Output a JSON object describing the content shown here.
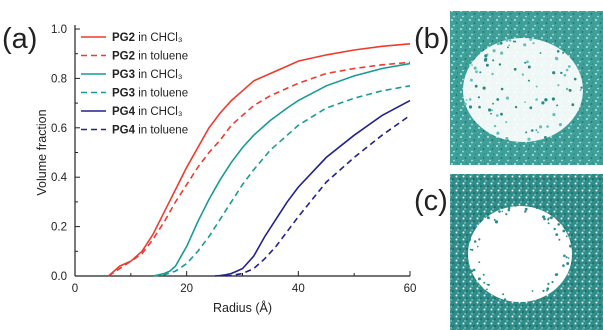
{
  "panels": {
    "a": "(a)",
    "b": "(b)",
    "c": "(c)"
  },
  "chart_data": {
    "type": "line",
    "title": "",
    "xlabel": "Radius (Å)",
    "ylabel": "Volume fraction",
    "xlim": [
      0,
      60
    ],
    "ylim": [
      0,
      1.0
    ],
    "x_ticks": [
      "0",
      "20",
      "40",
      "60"
    ],
    "y_ticks": [
      "0.0",
      "0.2",
      "0.4",
      "0.6",
      "0.8",
      "1.0"
    ],
    "grid": false,
    "legend_position": "top-left",
    "series": [
      {
        "name_bold": "PG2",
        "name_rest": " in CHCl₃",
        "color": "#ee3b2e",
        "dash": "solid",
        "x": [
          6,
          7,
          8,
          9,
          10,
          12,
          14,
          16,
          18,
          20,
          22,
          24,
          26,
          28,
          30,
          32,
          35,
          38,
          40,
          45,
          50,
          55,
          60
        ],
        "y": [
          0.0,
          0.02,
          0.04,
          0.05,
          0.06,
          0.1,
          0.17,
          0.26,
          0.35,
          0.44,
          0.52,
          0.6,
          0.66,
          0.71,
          0.75,
          0.79,
          0.82,
          0.85,
          0.87,
          0.895,
          0.915,
          0.93,
          0.94
        ]
      },
      {
        "name_bold": "PG2",
        "name_rest": " in toluene",
        "color": "#ee3b2e",
        "dash": "dashed",
        "x": [
          6,
          8,
          10,
          12,
          14,
          16,
          18,
          20,
          22,
          24,
          26,
          28,
          30,
          32,
          35,
          40,
          45,
          50,
          55,
          60
        ],
        "y": [
          0.0,
          0.03,
          0.06,
          0.09,
          0.15,
          0.22,
          0.3,
          0.37,
          0.44,
          0.5,
          0.55,
          0.61,
          0.65,
          0.69,
          0.73,
          0.78,
          0.82,
          0.84,
          0.855,
          0.865
        ]
      },
      {
        "name_bold": "PG3",
        "name_rest": " in CHCl₃",
        "color": "#1a9a96",
        "dash": "solid",
        "x": [
          14,
          15,
          16,
          17,
          18,
          19,
          20,
          22,
          24,
          26,
          28,
          30,
          32,
          35,
          38,
          40,
          45,
          50,
          55,
          60
        ],
        "y": [
          0.0,
          0.005,
          0.01,
          0.02,
          0.04,
          0.08,
          0.12,
          0.22,
          0.31,
          0.39,
          0.46,
          0.52,
          0.57,
          0.63,
          0.68,
          0.71,
          0.77,
          0.81,
          0.84,
          0.86
        ]
      },
      {
        "name_bold": "PG3",
        "name_rest": " in toluene",
        "color": "#1a9a96",
        "dash": "dashed",
        "x": [
          14,
          16,
          18,
          20,
          22,
          24,
          26,
          28,
          30,
          32,
          35,
          38,
          40,
          45,
          50,
          55,
          60
        ],
        "y": [
          0.0,
          0.005,
          0.02,
          0.05,
          0.1,
          0.16,
          0.23,
          0.3,
          0.37,
          0.43,
          0.51,
          0.57,
          0.61,
          0.68,
          0.72,
          0.75,
          0.77
        ]
      },
      {
        "name_bold": "PG4",
        "name_rest": " in CHCl₃",
        "color": "#22228e",
        "dash": "solid",
        "x": [
          25,
          26,
          27,
          28,
          29,
          30,
          32,
          34,
          36,
          38,
          40,
          45,
          50,
          55,
          60
        ],
        "y": [
          0.0,
          0.002,
          0.005,
          0.01,
          0.02,
          0.03,
          0.08,
          0.16,
          0.23,
          0.3,
          0.36,
          0.48,
          0.57,
          0.65,
          0.71
        ]
      },
      {
        "name_bold": "PG4",
        "name_rest": " in toluene",
        "color": "#22228e",
        "dash": "dashed",
        "x": [
          27,
          28,
          30,
          32,
          34,
          36,
          38,
          40,
          45,
          50,
          55,
          60
        ],
        "y": [
          0.0,
          0.002,
          0.01,
          0.03,
          0.07,
          0.12,
          0.18,
          0.24,
          0.38,
          0.48,
          0.57,
          0.65
        ]
      }
    ]
  }
}
